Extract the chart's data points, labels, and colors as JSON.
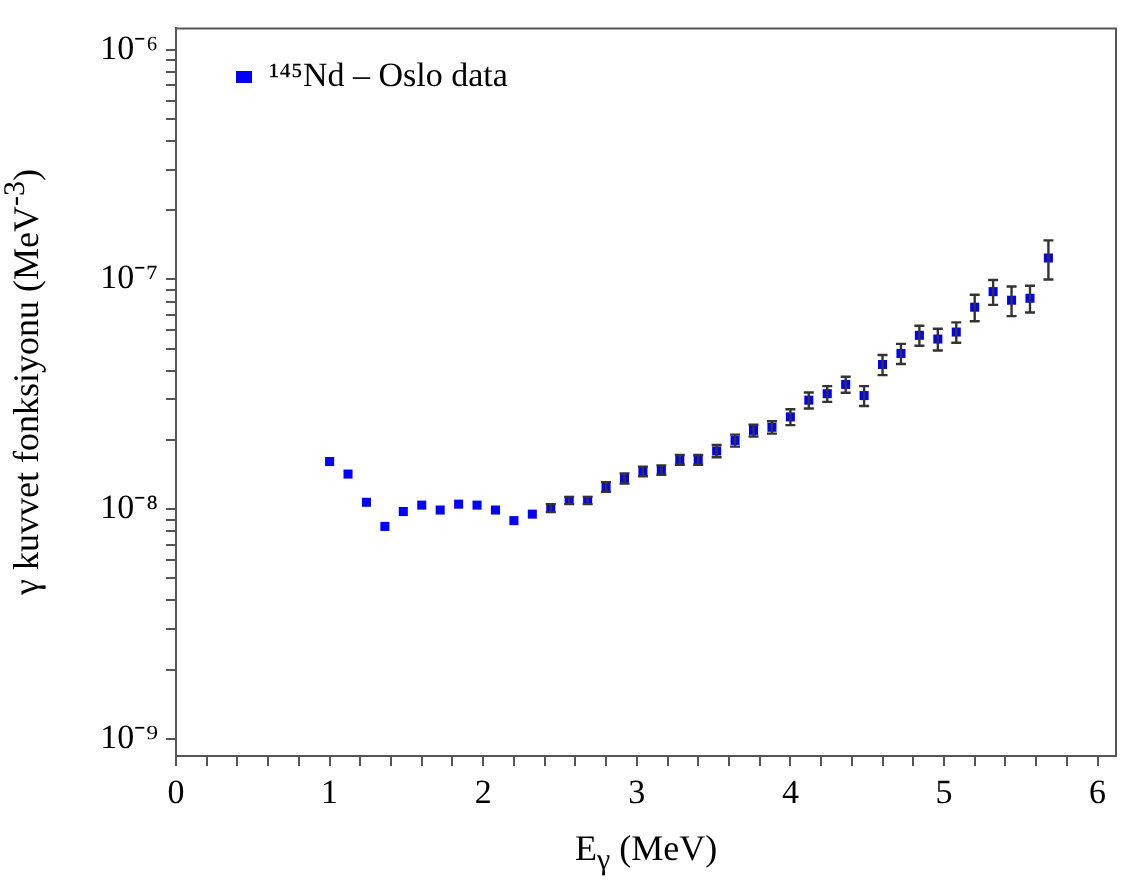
{
  "chart_data": {
    "type": "scatter",
    "xlabel": "E$_{γ}$ (MeV)",
    "ylabel": "γ kuvvet fonksiyonu (MeV$^{-3}$)",
    "x": [
      1.0,
      1.12,
      1.24,
      1.36,
      1.48,
      1.6,
      1.72,
      1.84,
      1.96,
      2.08,
      2.2,
      2.32,
      2.44,
      2.56,
      2.68,
      2.8,
      2.92,
      3.04,
      3.16,
      3.28,
      3.4,
      3.52,
      3.64,
      3.76,
      3.88,
      4.0,
      4.12,
      4.24,
      4.36,
      4.48,
      4.6,
      4.72,
      4.84,
      4.96,
      5.08,
      5.2,
      5.32,
      5.44,
      5.56,
      5.68
    ],
    "series": [
      {
        "name": "¹⁴⁵Nd – Oslo data",
        "color": "#0000ff",
        "values": [
          1.61e-08,
          1.42e-08,
          1.07e-08,
          8.4e-09,
          9.75e-09,
          1.04e-08,
          9.9e-09,
          1.05e-08,
          1.04e-08,
          9.9e-09,
          8.9e-09,
          9.5e-09,
          1.01e-08,
          1.09e-08,
          1.09e-08,
          1.25e-08,
          1.36e-08,
          1.46e-08,
          1.48e-08,
          1.64e-08,
          1.64e-08,
          1.79e-08,
          1.99e-08,
          2.2e-08,
          2.27e-08,
          2.52e-08,
          2.98e-08,
          3.18e-08,
          3.49e-08,
          3.12e-08,
          4.26e-08,
          4.76e-08,
          5.71e-08,
          5.5e-08,
          5.9e-08,
          7.57e-08,
          8.85e-08,
          8.12e-08,
          8.28e-08,
          1.24e-07
        ],
        "errors": [
          null,
          null,
          null,
          null,
          null,
          null,
          null,
          null,
          null,
          null,
          null,
          null,
          4e-10,
          4e-10,
          4e-10,
          6e-10,
          7e-10,
          7e-10,
          7e-10,
          8e-10,
          8e-10,
          1.1e-09,
          1.2e-09,
          1.3e-09,
          1.4e-09,
          2e-09,
          2.4e-09,
          2.5e-09,
          2.8e-09,
          3.1e-09,
          4.3e-09,
          4.8e-09,
          5.7e-09,
          6e-09,
          6e-09,
          1e-08,
          1.1e-08,
          1.2e-08,
          1.1e-08,
          2.4e-08
        ]
      }
    ],
    "marker": "square",
    "legend": "top left",
    "log": "y",
    "grid": false,
    "xlim": [
      0,
      6.12
    ],
    "ylim": [
      8.4e-10,
      1.24e-06
    ],
    "xticks": [
      0,
      {
        "value": 0.2,
        "label": null
      },
      {
        "value": 0.4,
        "label": null
      },
      {
        "value": 0.6,
        "label": null
      },
      {
        "value": 0.8,
        "label": null
      },
      1,
      {
        "value": 1.2,
        "label": null
      },
      {
        "value": 1.4,
        "label": null
      },
      {
        "value": 1.6,
        "label": null
      },
      {
        "value": 1.8,
        "label": null
      },
      2,
      {
        "value": 2.2,
        "label": null
      },
      {
        "value": 2.4,
        "label": null
      },
      {
        "value": 2.6,
        "label": null
      },
      {
        "value": 2.8,
        "label": null
      },
      3,
      {
        "value": 3.2,
        "label": null
      },
      {
        "value": 3.4,
        "label": null
      },
      {
        "value": 3.6,
        "label": null
      },
      {
        "value": 3.8,
        "label": null
      },
      4,
      {
        "value": 4.2,
        "label": null
      },
      {
        "value": 4.4,
        "label": null
      },
      {
        "value": 4.6,
        "label": null
      },
      {
        "value": 4.8,
        "label": null
      },
      5,
      {
        "value": 5.2,
        "label": null
      },
      {
        "value": 5.4,
        "label": null
      },
      {
        "value": 5.6,
        "label": null
      },
      {
        "value": 5.8,
        "label": null
      },
      6
    ],
    "yticks": [
      {
        "value": 1e-09,
        "label": "10⁻⁹"
      },
      {
        "value": 2e-09,
        "label": null
      },
      {
        "value": 3e-09,
        "label": null
      },
      {
        "value": 4e-09,
        "label": null
      },
      {
        "value": 5e-09,
        "label": null
      },
      {
        "value": 6e-09,
        "label": null
      },
      {
        "value": 7e-09,
        "label": null
      },
      {
        "value": 8e-09,
        "label": null
      },
      {
        "value": 9e-09,
        "label": null
      },
      {
        "value": 1e-08,
        "label": "10⁻⁸"
      },
      {
        "value": 2e-08,
        "label": null
      },
      {
        "value": 3e-08,
        "label": null
      },
      {
        "value": 4e-08,
        "label": null
      },
      {
        "value": 5e-08,
        "label": null
      },
      {
        "value": 6e-08,
        "label": null
      },
      {
        "value": 7e-08,
        "label": null
      },
      {
        "value": 8e-08,
        "label": null
      },
      {
        "value": 9e-08,
        "label": null
      },
      {
        "value": 1e-07,
        "label": "10⁻⁷"
      },
      {
        "value": 2e-07,
        "label": null
      },
      {
        "value": 3e-07,
        "label": null
      },
      {
        "value": 4e-07,
        "label": null
      },
      {
        "value": 5e-07,
        "label": null
      },
      {
        "value": 6e-07,
        "label": null
      },
      {
        "value": 7e-07,
        "label": null
      },
      {
        "value": 8e-07,
        "label": null
      },
      {
        "value": 9e-07,
        "label": null
      },
      {
        "value": 1e-06,
        "label": "10⁻⁶"
      }
    ]
  }
}
